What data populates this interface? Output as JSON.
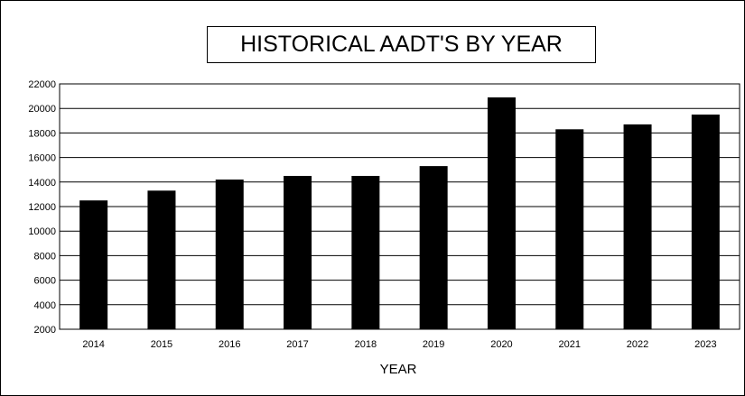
{
  "chart_data": {
    "type": "bar",
    "title": "HISTORICAL AADT'S BY YEAR",
    "xlabel": "YEAR",
    "ylabel": "",
    "categories": [
      "2014",
      "2015",
      "2016",
      "2017",
      "2018",
      "2019",
      "2020",
      "2021",
      "2022",
      "2023"
    ],
    "values": [
      12500,
      13300,
      14200,
      14500,
      14500,
      15300,
      20900,
      18300,
      18700,
      19500
    ],
    "ylim": [
      2000,
      22000
    ],
    "yticks": [
      2000,
      4000,
      6000,
      8000,
      10000,
      12000,
      14000,
      16000,
      18000,
      20000,
      22000
    ],
    "grid": true,
    "legend": "none",
    "bar_color": "#000000"
  }
}
